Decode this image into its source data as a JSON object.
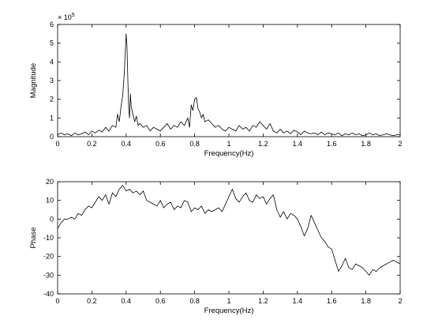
{
  "chart_data": [
    {
      "type": "line",
      "title": "",
      "xlabel": "Frequency(Hz)",
      "ylabel": "Magnitude",
      "exponent_label": "× 10",
      "exponent_power": "5",
      "xlim": [
        0,
        2
      ],
      "ylim": [
        0,
        6
      ],
      "xticks": [
        0,
        0.2,
        0.4,
        0.6,
        0.8,
        1,
        1.2,
        1.4,
        1.6,
        1.8,
        2
      ],
      "xtick_labels": [
        "0",
        "0.2",
        "0.4",
        "0.6",
        "0.8",
        "1",
        "1.2",
        "1.4",
        "1.6",
        "1.8",
        "2"
      ],
      "yticks": [
        0,
        1,
        2,
        3,
        4,
        5,
        6
      ],
      "ytick_labels": [
        "0",
        "1",
        "2",
        "3",
        "4",
        "5",
        "6"
      ],
      "grid": false,
      "series": [
        {
          "name": "magnitude",
          "x": [
            0,
            0.02,
            0.04,
            0.06,
            0.08,
            0.1,
            0.12,
            0.14,
            0.16,
            0.18,
            0.2,
            0.22,
            0.24,
            0.26,
            0.28,
            0.3,
            0.32,
            0.34,
            0.35,
            0.36,
            0.37,
            0.38,
            0.39,
            0.395,
            0.4,
            0.405,
            0.41,
            0.415,
            0.42,
            0.425,
            0.43,
            0.44,
            0.45,
            0.46,
            0.47,
            0.48,
            0.5,
            0.52,
            0.54,
            0.56,
            0.58,
            0.6,
            0.62,
            0.64,
            0.66,
            0.68,
            0.7,
            0.72,
            0.74,
            0.76,
            0.77,
            0.78,
            0.79,
            0.8,
            0.81,
            0.82,
            0.83,
            0.84,
            0.85,
            0.86,
            0.88,
            0.9,
            0.92,
            0.94,
            0.96,
            0.98,
            1.0,
            1.02,
            1.04,
            1.06,
            1.08,
            1.1,
            1.12,
            1.14,
            1.16,
            1.18,
            1.2,
            1.22,
            1.24,
            1.26,
            1.28,
            1.3,
            1.32,
            1.34,
            1.36,
            1.38,
            1.4,
            1.42,
            1.44,
            1.46,
            1.48,
            1.5,
            1.52,
            1.54,
            1.56,
            1.58,
            1.6,
            1.62,
            1.64,
            1.66,
            1.68,
            1.7,
            1.72,
            1.74,
            1.76,
            1.78,
            1.8,
            1.82,
            1.84,
            1.86,
            1.88,
            1.9,
            1.92,
            1.94,
            1.96,
            1.98,
            2.0
          ],
          "values": [
            0.1,
            0.2,
            0.1,
            0.15,
            0.05,
            0.2,
            0.1,
            0.15,
            0.25,
            0.1,
            0.3,
            0.2,
            0.35,
            0.25,
            0.5,
            0.3,
            0.6,
            0.5,
            1.2,
            0.8,
            1.6,
            2.2,
            3.5,
            4.5,
            5.5,
            4.8,
            3.0,
            1.5,
            1.0,
            2.3,
            1.6,
            1.2,
            0.8,
            1.1,
            0.6,
            0.7,
            0.5,
            0.6,
            0.3,
            0.5,
            0.4,
            0.3,
            0.5,
            0.7,
            0.4,
            0.6,
            0.5,
            0.8,
            0.6,
            1.0,
            0.5,
            1.7,
            1.4,
            2.0,
            2.1,
            1.5,
            1.3,
            1.0,
            1.2,
            0.8,
            0.9,
            0.7,
            0.5,
            0.6,
            0.4,
            0.3,
            0.5,
            0.4,
            0.3,
            0.6,
            0.4,
            0.5,
            0.3,
            0.6,
            0.5,
            0.8,
            0.6,
            0.4,
            0.7,
            0.3,
            0.2,
            0.4,
            0.2,
            0.3,
            0.15,
            0.35,
            0.25,
            0.1,
            0.3,
            0.2,
            0.15,
            0.2,
            0.1,
            0.25,
            0.1,
            0.2,
            0.15,
            0.1,
            0.2,
            0.05,
            0.15,
            0.1,
            0.2,
            0.1,
            0.15,
            0.05,
            0.1,
            0.2,
            0.1,
            0.15,
            0.05,
            0.1,
            0.15,
            0.1,
            0.05,
            0.1,
            0.1
          ]
        }
      ]
    },
    {
      "type": "line",
      "title": "",
      "xlabel": "Frequency(Hz)",
      "ylabel": "Phase",
      "xlim": [
        0,
        2
      ],
      "ylim": [
        -40,
        20
      ],
      "xticks": [
        0,
        0.2,
        0.4,
        0.6,
        0.8,
        1,
        1.2,
        1.4,
        1.6,
        1.8,
        2
      ],
      "xtick_labels": [
        "0",
        "0.2",
        "0.4",
        "0.6",
        "0.8",
        "1",
        "1.2",
        "1.4",
        "1.6",
        "1.8",
        "2"
      ],
      "yticks": [
        -40,
        -30,
        -20,
        -10,
        0,
        10,
        20
      ],
      "ytick_labels": [
        "-40",
        "-30",
        "-20",
        "-10",
        "0",
        "10",
        "20"
      ],
      "grid": false,
      "series": [
        {
          "name": "phase",
          "x": [
            0,
            0.02,
            0.04,
            0.06,
            0.08,
            0.1,
            0.12,
            0.14,
            0.16,
            0.18,
            0.2,
            0.22,
            0.24,
            0.26,
            0.28,
            0.3,
            0.32,
            0.34,
            0.36,
            0.38,
            0.4,
            0.42,
            0.44,
            0.46,
            0.48,
            0.5,
            0.52,
            0.54,
            0.56,
            0.58,
            0.6,
            0.62,
            0.64,
            0.66,
            0.68,
            0.7,
            0.72,
            0.74,
            0.76,
            0.78,
            0.8,
            0.82,
            0.84,
            0.86,
            0.88,
            0.9,
            0.92,
            0.94,
            0.96,
            0.98,
            1.0,
            1.02,
            1.04,
            1.06,
            1.08,
            1.1,
            1.12,
            1.14,
            1.16,
            1.18,
            1.2,
            1.22,
            1.24,
            1.26,
            1.28,
            1.3,
            1.32,
            1.34,
            1.36,
            1.38,
            1.4,
            1.42,
            1.44,
            1.46,
            1.48,
            1.5,
            1.52,
            1.54,
            1.56,
            1.58,
            1.6,
            1.62,
            1.64,
            1.66,
            1.68,
            1.7,
            1.72,
            1.74,
            1.76,
            1.78,
            1.8,
            1.82,
            1.84,
            1.86,
            1.88,
            1.9,
            1.92,
            1.94,
            1.96,
            1.98,
            2.0
          ],
          "values": [
            -5,
            -2,
            0,
            0,
            1,
            0,
            3,
            2,
            5,
            7,
            6,
            9,
            12,
            10,
            13,
            8,
            14,
            12,
            16,
            18,
            15,
            16,
            14,
            15,
            13,
            15,
            10,
            9,
            8,
            7,
            10,
            6,
            8,
            9,
            5,
            7,
            6,
            10,
            9,
            4,
            6,
            5,
            7,
            3,
            5,
            4,
            5,
            6,
            4,
            8,
            12,
            16,
            11,
            9,
            12,
            14,
            10,
            9,
            13,
            11,
            12,
            8,
            11,
            13,
            5,
            1,
            4,
            0,
            3,
            2,
            0,
            -4,
            -9,
            -5,
            2,
            -2,
            -6,
            -10,
            -12,
            -15,
            -16,
            -22,
            -28,
            -25,
            -21,
            -26,
            -27,
            -24,
            -25,
            -26,
            -28,
            -30,
            -27,
            -28,
            -26,
            -25,
            -24,
            -23,
            -22,
            -23,
            -24
          ]
        }
      ]
    }
  ]
}
